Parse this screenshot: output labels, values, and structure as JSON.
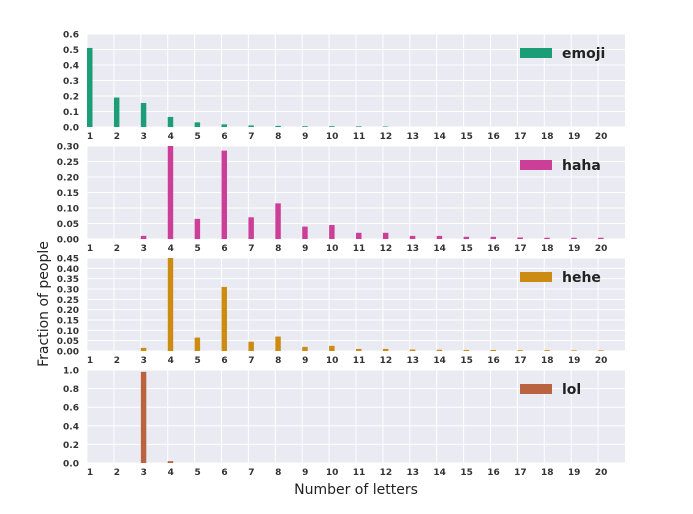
{
  "figure": {
    "xlabel": "Number of letters",
    "ylabel": "Fraction of people"
  },
  "chart_data": [
    {
      "type": "bar",
      "legend": "emoji",
      "color": "#1b9e77",
      "categories": [
        1,
        2,
        3,
        4,
        5,
        6,
        7,
        8,
        9,
        10,
        11,
        12,
        13,
        14,
        15,
        16,
        17,
        18,
        19,
        20
      ],
      "values": [
        0.51,
        0.19,
        0.155,
        0.065,
        0.03,
        0.017,
        0.01,
        0.007,
        0.005,
        0.005,
        0.004,
        0.003,
        0,
        0,
        0,
        0,
        0,
        0,
        0,
        0
      ],
      "ylim": [
        0,
        0.6
      ],
      "yticks": [
        "0.0",
        "0.1",
        "0.2",
        "0.3",
        "0.4",
        "0.5",
        "0.6"
      ],
      "grid": true,
      "legend_position": "top-right"
    },
    {
      "type": "bar",
      "legend": "haha",
      "color": "#cc3f98",
      "categories": [
        1,
        2,
        3,
        4,
        5,
        6,
        7,
        8,
        9,
        10,
        11,
        12,
        13,
        14,
        15,
        16,
        17,
        18,
        19,
        20
      ],
      "values": [
        0,
        0,
        0.01,
        0.3,
        0.065,
        0.285,
        0.07,
        0.115,
        0.04,
        0.045,
        0.02,
        0.02,
        0.01,
        0.01,
        0.007,
        0.007,
        0.005,
        0.004,
        0.004,
        0.004
      ],
      "ylim": [
        0,
        0.3
      ],
      "yticks": [
        "0.00",
        "0.05",
        "0.10",
        "0.15",
        "0.20",
        "0.25",
        "0.30"
      ],
      "grid": true,
      "legend_position": "top-right"
    },
    {
      "type": "bar",
      "legend": "hehe",
      "color": "#cc8c14",
      "categories": [
        1,
        2,
        3,
        4,
        5,
        6,
        7,
        8,
        9,
        10,
        11,
        12,
        13,
        14,
        15,
        16,
        17,
        18,
        19,
        20
      ],
      "values": [
        0,
        0,
        0.015,
        0.45,
        0.065,
        0.31,
        0.045,
        0.07,
        0.02,
        0.025,
        0.01,
        0.01,
        0.007,
        0.006,
        0.005,
        0.005,
        0.004,
        0.004,
        0.003,
        0.003
      ],
      "ylim": [
        0,
        0.45
      ],
      "yticks": [
        "0.00",
        "0.05",
        "0.10",
        "0.15",
        "0.20",
        "0.25",
        "0.30",
        "0.35",
        "0.40",
        "0.45"
      ],
      "grid": true,
      "legend_position": "top-right"
    },
    {
      "type": "bar",
      "legend": "lol",
      "color": "#b96340",
      "categories": [
        1,
        2,
        3,
        4,
        5,
        6,
        7,
        8,
        9,
        10,
        11,
        12,
        13,
        14,
        15,
        16,
        17,
        18,
        19,
        20
      ],
      "values": [
        0,
        0,
        0.98,
        0.02,
        0,
        0,
        0,
        0,
        0,
        0,
        0,
        0,
        0,
        0,
        0,
        0,
        0,
        0,
        0,
        0
      ],
      "ylim": [
        0,
        1.0
      ],
      "yticks": [
        "0.0",
        "0.2",
        "0.4",
        "0.6",
        "0.8",
        "1.0"
      ],
      "grid": true,
      "legend_position": "top-right"
    }
  ]
}
